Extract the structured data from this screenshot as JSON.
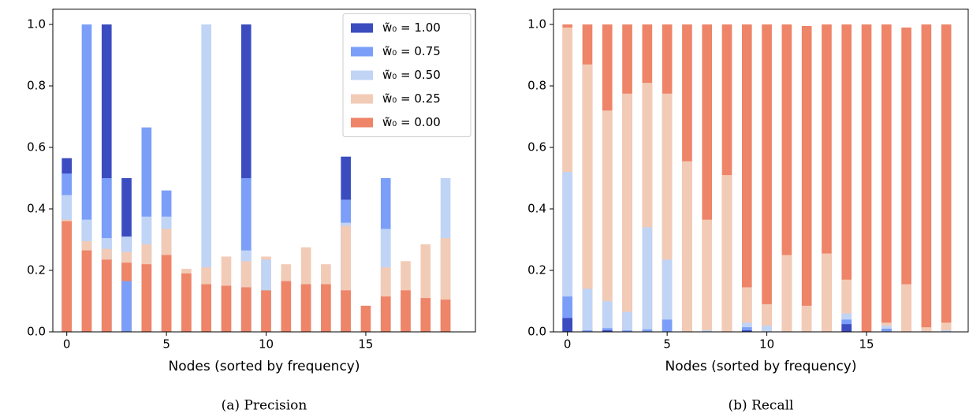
{
  "chart_data": [
    {
      "type": "bar",
      "caption": "(a) Precision",
      "x_label": "Nodes (sorted by frequency)",
      "x": [
        0,
        1,
        2,
        3,
        4,
        5,
        6,
        7,
        8,
        9,
        10,
        11,
        12,
        13,
        14,
        15,
        16,
        17,
        18,
        19
      ],
      "xlim": [
        -0.7,
        20.5
      ],
      "xticks": [
        0,
        5,
        10,
        15
      ],
      "ylim": [
        0,
        1.05
      ],
      "yticks": [
        {
          "value": 0,
          "label": "0.0"
        },
        0.2,
        0.4,
        0.6,
        0.8,
        {
          "value": 1,
          "label": "1.0"
        }
      ],
      "legend": "upper right",
      "series": [
        {
          "name": "w̃₀ = 1.00",
          "color": "#3b4cc0",
          "values": [
            0.565,
            null,
            1.0,
            0.5,
            null,
            null,
            null,
            null,
            null,
            1.0,
            null,
            null,
            null,
            null,
            0.57,
            null,
            null,
            null,
            null,
            null
          ]
        },
        {
          "name": "w̃₀ = 0.75",
          "color": "#7b9ff9",
          "values": [
            0.515,
            1.0,
            0.5,
            0.165,
            0.665,
            0.46,
            null,
            null,
            null,
            0.5,
            null,
            null,
            null,
            null,
            0.43,
            null,
            0.5,
            null,
            null,
            null
          ]
        },
        {
          "name": "w̃₀ = 0.50",
          "color": "#c0d4f5",
          "values": [
            0.445,
            0.365,
            0.305,
            0.31,
            0.375,
            0.375,
            null,
            1.0,
            null,
            0.265,
            0.235,
            null,
            null,
            null,
            0.355,
            null,
            0.335,
            null,
            null,
            0.5
          ]
        },
        {
          "name": "w̃₀ = 0.25",
          "color": "#f2cbb7",
          "values": [
            0.365,
            0.295,
            0.27,
            0.26,
            0.285,
            0.335,
            0.205,
            0.21,
            0.245,
            0.23,
            0.245,
            0.22,
            0.275,
            0.22,
            0.345,
            null,
            0.21,
            0.23,
            0.285,
            0.305
          ]
        },
        {
          "name": "w̃₀ = 0.00",
          "color": "#ee8468",
          "values": [
            0.36,
            0.265,
            0.235,
            0.225,
            0.22,
            0.25,
            0.19,
            0.155,
            0.15,
            0.145,
            0.135,
            0.165,
            0.155,
            0.155,
            0.135,
            0.085,
            0.115,
            0.135,
            0.11,
            0.105
          ]
        }
      ]
    },
    {
      "type": "bar",
      "caption": "(b) Recall",
      "x_label": "Nodes (sorted by frequency)",
      "x": [
        0,
        1,
        2,
        3,
        4,
        5,
        6,
        7,
        8,
        9,
        10,
        11,
        12,
        13,
        14,
        15,
        16,
        17,
        18,
        19
      ],
      "xlim": [
        -0.7,
        20.1
      ],
      "xticks": [
        0,
        5,
        10,
        15
      ],
      "ylim": [
        0,
        1.05
      ],
      "yticks": [
        {
          "value": 0,
          "label": "0.0"
        },
        0.2,
        0.4,
        0.6,
        0.8,
        {
          "value": 1,
          "label": "1.0"
        }
      ],
      "series": [
        {
          "name": "w̃₀ = 1.00",
          "color": "#3b4cc0",
          "values": [
            0.045,
            0.005,
            0.005,
            0,
            0,
            0,
            0,
            0,
            0,
            0.005,
            0,
            0,
            0,
            0,
            0.025,
            0,
            0.01,
            0,
            0,
            0
          ]
        },
        {
          "name": "w̃₀ = 0.75",
          "color": "#7b9ff9",
          "values": [
            0.115,
            0.005,
            0.012,
            0.005,
            0.008,
            0.04,
            0,
            0,
            0,
            0.015,
            0,
            0,
            0,
            0,
            0.04,
            0,
            0.01,
            0,
            0,
            0
          ]
        },
        {
          "name": "w̃₀ = 0.50",
          "color": "#c0d4f5",
          "values": [
            0.52,
            0.14,
            0.1,
            0.065,
            0.34,
            0.235,
            0,
            0.005,
            0,
            0.03,
            0.02,
            0,
            0,
            0,
            0.06,
            0,
            0.02,
            0,
            0,
            0.005
          ]
        },
        {
          "name": "w̃₀ = 0.25",
          "color": "#f2cbb7",
          "values": [
            0.99,
            0.87,
            0.72,
            0.775,
            0.81,
            0.775,
            0.555,
            0.365,
            0.51,
            0.145,
            0.09,
            0.25,
            0.085,
            0.255,
            0.17,
            0,
            0.03,
            0.155,
            0.015,
            0.03
          ]
        },
        {
          "name": "w̃₀ = 0.00",
          "color": "#ee8468",
          "values": [
            1.0,
            1.0,
            1.0,
            1.0,
            1.0,
            1.0,
            1.0,
            1.0,
            1.0,
            1.0,
            1.0,
            1.0,
            0.995,
            1.0,
            1.0,
            1.0,
            1.0,
            0.99,
            1.0,
            1.0
          ]
        }
      ]
    }
  ]
}
